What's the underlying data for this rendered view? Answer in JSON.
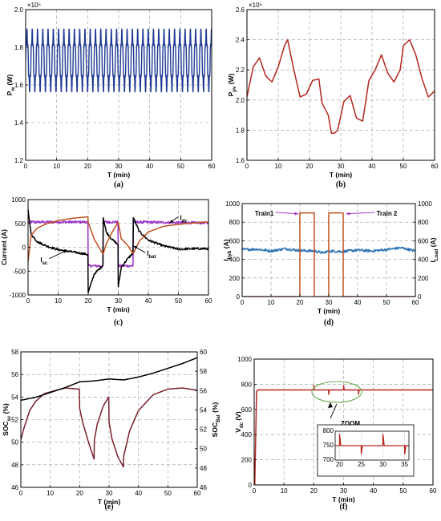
{
  "chart_data": [
    {
      "id": "a",
      "type": "line",
      "caption": "(a)",
      "xlabel": "T (min)",
      "ylabel": "P",
      "ylabel_sub": "w",
      "ylabel_unit": "(W)",
      "exponent": "×10⁵",
      "xlim": [
        0,
        60
      ],
      "ylim": [
        1.2,
        2.0
      ],
      "xticks": [
        0,
        10,
        20,
        30,
        40,
        50,
        60
      ],
      "yticks": [
        1.2,
        1.4,
        1.6,
        1.8,
        2.0
      ],
      "grid": true,
      "series": [
        {
          "color": "#1f3a93",
          "oscillation": {
            "center": 1.73,
            "amplitude": 0.14,
            "period_min": 1.7,
            "ripple_amplitude": 0.03
          },
          "x": [
            0,
            10,
            20,
            30,
            40,
            50,
            60
          ],
          "y": [
            1.72,
            1.73,
            1.73,
            1.72,
            1.73,
            1.73,
            1.72
          ]
        }
      ]
    },
    {
      "id": "b",
      "type": "line",
      "caption": "(b)",
      "xlabel": "T (min)",
      "ylabel": "P",
      "ylabel_sub": "pv",
      "ylabel_unit": "(W)",
      "exponent": "×10⁵",
      "xlim": [
        0,
        60
      ],
      "ylim": [
        1.6,
        2.6
      ],
      "xticks": [
        0,
        10,
        20,
        30,
        40,
        50,
        60
      ],
      "yticks": [
        1.6,
        1.8,
        2.0,
        2.2,
        2.4,
        2.6
      ],
      "grid": true,
      "series": [
        {
          "color": "#b5261e",
          "x": [
            0,
            2,
            4,
            6,
            8,
            10,
            12,
            13,
            15,
            17,
            19,
            21,
            23,
            24,
            26,
            27,
            28,
            29,
            31,
            33,
            35,
            37,
            39,
            41,
            43,
            45,
            47,
            49,
            50,
            52,
            54,
            56,
            58,
            60
          ],
          "y": [
            2.02,
            2.22,
            2.28,
            2.16,
            2.12,
            2.22,
            2.36,
            2.4,
            2.2,
            2.02,
            2.04,
            2.13,
            2.14,
            1.98,
            1.9,
            1.78,
            1.78,
            1.8,
            1.99,
            2.03,
            1.88,
            1.86,
            2.13,
            2.2,
            2.3,
            2.18,
            2.12,
            2.2,
            2.36,
            2.4,
            2.3,
            2.14,
            2.02,
            2.06
          ]
        }
      ]
    },
    {
      "id": "c",
      "type": "line",
      "caption": "(c)",
      "xlabel": "T (min)",
      "ylabel": "Current (A)",
      "xlim": [
        0,
        60
      ],
      "ylim": [
        -1000,
        1000
      ],
      "xticks": [
        0,
        10,
        20,
        30,
        40,
        50,
        60
      ],
      "yticks": [
        -1000,
        -500,
        0,
        500,
        1000
      ],
      "grid": true,
      "annotations": [
        {
          "text": "I",
          "sub": "dc",
          "at": [
            50,
            640
          ],
          "arrow_to": [
            47,
            510
          ]
        },
        {
          "text": "I",
          "sub": "sc",
          "at": [
            7,
            -240
          ],
          "arrow_to": [
            13,
            -60
          ]
        },
        {
          "text": "I",
          "sub": "bat",
          "at": [
            39,
            -110
          ],
          "arrow_to": [
            35,
            30
          ]
        }
      ],
      "series": [
        {
          "name": "Idc",
          "color": "#9b30c8",
          "noise": 25,
          "x": [
            0,
            19.9,
            20,
            24.9,
            25,
            29.9,
            30,
            34.9,
            35,
            60
          ],
          "y": [
            530,
            530,
            -390,
            -390,
            530,
            530,
            -390,
            -390,
            530,
            510
          ]
        },
        {
          "name": "Isc",
          "color": "#000000",
          "noise": 22,
          "x": [
            0,
            1,
            3,
            6,
            10,
            15,
            19.9,
            20,
            22,
            24.9,
            25,
            26,
            28,
            29.9,
            30,
            31,
            33,
            34.9,
            35,
            37,
            40,
            45,
            50,
            55,
            60
          ],
          "y": [
            800,
            280,
            120,
            30,
            -50,
            -100,
            -150,
            -950,
            -560,
            -380,
            620,
            320,
            160,
            60,
            -830,
            -420,
            -250,
            -120,
            620,
            330,
            150,
            30,
            -40,
            -30,
            -30
          ]
        },
        {
          "name": "Ibat",
          "color": "#c0501f",
          "x": [
            0,
            1,
            3,
            6,
            10,
            15,
            19.9,
            20,
            22,
            24.9,
            25,
            26,
            28,
            29.9,
            30,
            31,
            33,
            34.9,
            35,
            37,
            40,
            45,
            50,
            55,
            60
          ],
          "y": [
            -300,
            250,
            400,
            490,
            560,
            610,
            640,
            520,
            170,
            -140,
            -140,
            70,
            320,
            520,
            520,
            180,
            50,
            -130,
            -130,
            130,
            320,
            440,
            480,
            510,
            530
          ]
        }
      ]
    },
    {
      "id": "d",
      "type": "line",
      "caption": "(d)",
      "xlabel": "T (min)",
      "ylabel": "I",
      "ylabel_sub": "hyb",
      "ylabel_unit": "(A)",
      "ylabel2": "I",
      "ylabel2_sub": "Load",
      "ylabel2_unit": "(A)",
      "xlim": [
        0,
        60
      ],
      "ylim": [
        0,
        1000
      ],
      "ylim2": [
        0,
        1000
      ],
      "xticks": [
        0,
        10,
        20,
        30,
        40,
        50,
        60
      ],
      "yticks": [
        0,
        200,
        400,
        600,
        800,
        1000
      ],
      "yticks2": [
        0,
        200,
        400,
        600,
        800,
        1000
      ],
      "left_axis_color": "#2e75b6",
      "right_axis_color": "#c0501f",
      "grid": true,
      "annotations": [
        {
          "text": "Train1",
          "color": "#9b30c8",
          "at": [
            11.5,
            905
          ],
          "arrow_to": [
            19.5,
            890
          ]
        },
        {
          "text": "Train 2",
          "color": "#9b30c8",
          "at": [
            46,
            905
          ],
          "arrow_to": [
            36,
            890
          ]
        }
      ],
      "series": [
        {
          "name": "Ihyb",
          "color": "#2e75b6",
          "noise": 14,
          "x": [
            0,
            5,
            10,
            15,
            20,
            25,
            28,
            30,
            35,
            40,
            45,
            50,
            55,
            60
          ],
          "y": [
            505,
            510,
            490,
            515,
            495,
            490,
            470,
            490,
            485,
            500,
            490,
            505,
            525,
            490
          ]
        },
        {
          "name": "Iload",
          "color": "#c0501f",
          "x": [
            0,
            20,
            20,
            25,
            25,
            30,
            30,
            35,
            35,
            60
          ],
          "y": [
            0,
            0,
            900,
            900,
            0,
            0,
            900,
            900,
            0,
            0
          ]
        }
      ]
    },
    {
      "id": "e",
      "type": "line",
      "caption": "(e)",
      "xlabel": "T (min)",
      "ylabel": "SOC",
      "ylabel_sub": "sc",
      "ylabel_unit": "(%)",
      "ylabel2": "SOC",
      "ylabel2_sub": "Bat",
      "ylabel2_unit": "(%)",
      "xlim": [
        0,
        60
      ],
      "ylim": [
        46,
        58
      ],
      "ylim2": [
        46,
        60
      ],
      "xticks": [
        0,
        10,
        20,
        30,
        40,
        50,
        60
      ],
      "yticks": [
        46,
        48,
        50,
        52,
        54,
        56,
        58
      ],
      "yticks2": [
        46,
        48,
        50,
        52,
        54,
        56,
        58,
        60
      ],
      "left_axis_color": "#8b1a1a",
      "right_axis_color": "#000000",
      "grid": true,
      "series": [
        {
          "name": "SOCsc",
          "color": "#7a1f2b",
          "axis": "left",
          "x": [
            0,
            1,
            3,
            5,
            8,
            12,
            15,
            19.9,
            20,
            21,
            23,
            24.9,
            25,
            26,
            28,
            29.9,
            30,
            31,
            33,
            34.9,
            35,
            37,
            40,
            45,
            50,
            55,
            60
          ],
          "y": [
            50.2,
            51.2,
            52.8,
            53.6,
            54.3,
            54.6,
            54.8,
            54.7,
            53.0,
            51.8,
            50.0,
            48.5,
            50.2,
            51.6,
            53.2,
            54.0,
            51.8,
            50.3,
            48.7,
            47.8,
            48.8,
            51.0,
            52.8,
            54.2,
            54.7,
            54.8,
            54.6
          ]
        },
        {
          "name": "SOCbat",
          "color": "#000000",
          "axis": "right",
          "x": [
            0,
            5,
            10,
            15,
            20,
            25,
            30,
            35,
            40,
            45,
            50,
            55,
            60
          ],
          "y": [
            55.0,
            55.3,
            55.8,
            56.3,
            56.9,
            57.0,
            57.2,
            57.1,
            57.4,
            57.8,
            58.3,
            58.8,
            59.4
          ]
        }
      ]
    },
    {
      "id": "f",
      "type": "line",
      "caption": "(f)",
      "xlabel": "T (min)",
      "ylabel": "V",
      "ylabel_sub": "dc",
      "ylabel_unit": "(V)",
      "xlim": [
        0,
        60
      ],
      "ylim": [
        0,
        1000
      ],
      "xticks": [
        0,
        10,
        20,
        30,
        40,
        50,
        60
      ],
      "yticks": [
        0,
        200,
        400,
        600,
        800,
        1000
      ],
      "grid": true,
      "zoom_label": "ZOOM",
      "series": [
        {
          "color": "#b5261e",
          "x": [
            0,
            0.2,
            0.8,
            1.2,
            20,
            20.01,
            20.2,
            25,
            25.01,
            25.2,
            30,
            30.01,
            30.2,
            35,
            35.01,
            35.2,
            60
          ],
          "y": [
            0,
            0,
            740,
            755,
            755,
            790,
            755,
            755,
            720,
            755,
            755,
            790,
            755,
            755,
            720,
            755,
            755
          ]
        }
      ],
      "inset": {
        "xlim": [
          19,
          36
        ],
        "ylim": [
          700,
          800
        ],
        "xticks": [
          20,
          25,
          30,
          35
        ],
        "yticks": [
          700,
          750,
          800
        ],
        "x": [
          19,
          20,
          20.01,
          20.3,
          25,
          25.01,
          25.3,
          30,
          30.01,
          30.3,
          35,
          35.01,
          35.3,
          36
        ],
        "y": [
          750,
          750,
          790,
          750,
          750,
          720,
          750,
          750,
          790,
          750,
          750,
          720,
          750,
          750
        ]
      }
    }
  ]
}
